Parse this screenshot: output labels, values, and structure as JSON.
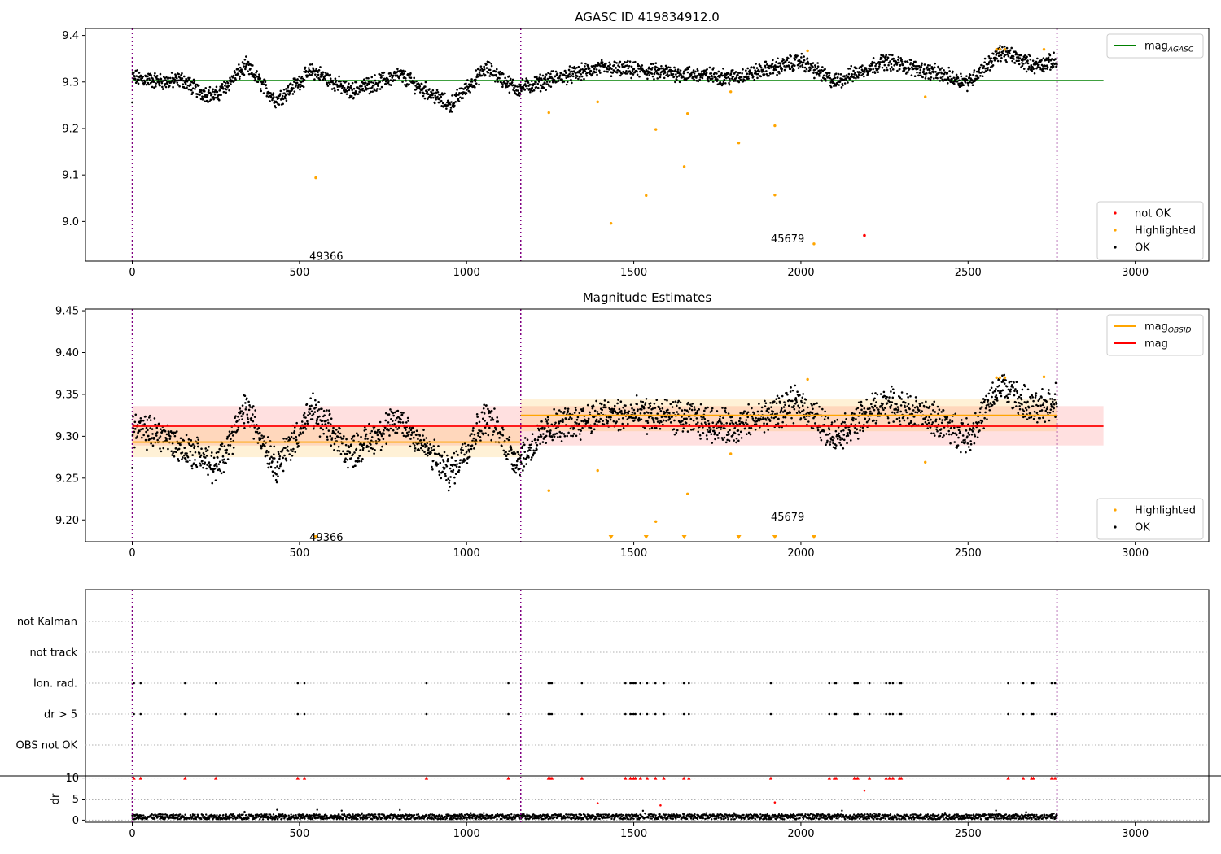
{
  "chart_data": [
    {
      "type": "scatter",
      "title": "AGASC ID 419834912.0",
      "xlim": [
        -140,
        3220
      ],
      "ylim": [
        8.915,
        9.415
      ],
      "xticks": [
        "0",
        "500",
        "1000",
        "1500",
        "2000",
        "2500",
        "3000"
      ],
      "yticks": [
        "9.0",
        "9.1",
        "9.2",
        "9.3",
        "9.4"
      ],
      "obsid_boundaries": [
        0,
        1162,
        2766
      ],
      "legend_top": [
        {
          "label": "mag",
          "subscript": "AGASC",
          "color": "#008000",
          "kind": "line"
        }
      ],
      "legend_bottom": [
        {
          "label": "not OK",
          "color": "#ff0000",
          "kind": "dot"
        },
        {
          "label": "Highlighted",
          "color": "#ffa500",
          "kind": "dot"
        },
        {
          "label": "OK",
          "color": "#000000",
          "kind": "dot"
        }
      ],
      "hlines": [
        {
          "name": "mag AGASC",
          "y": 9.303,
          "x0": 0,
          "x1": 2905,
          "color": "#008000"
        }
      ],
      "annotations": [
        {
          "text": "49366",
          "x": 530,
          "y": 8.925
        },
        {
          "text": "45679",
          "x": 1910,
          "y": 8.962
        }
      ],
      "series": [
        {
          "name": "OK",
          "color": "#000000",
          "points": [
            [
              0,
              9.255
            ],
            [
              0,
              9.31
            ],
            [
              100,
              9.3
            ],
            [
              150,
              9.305
            ],
            [
              200,
              9.28
            ],
            [
              250,
              9.27
            ],
            [
              340,
              9.335
            ],
            [
              430,
              9.26
            ],
            [
              540,
              9.325
            ],
            [
              650,
              9.28
            ],
            [
              800,
              9.315
            ],
            [
              950,
              9.25
            ],
            [
              1060,
              9.33
            ],
            [
              1150,
              9.285
            ],
            [
              1250,
              9.305
            ],
            [
              1400,
              9.33
            ],
            [
              1600,
              9.32
            ],
            [
              1800,
              9.31
            ],
            [
              2000,
              9.345
            ],
            [
              2100,
              9.3
            ],
            [
              2250,
              9.345
            ],
            [
              2400,
              9.32
            ],
            [
              2500,
              9.3
            ],
            [
              2600,
              9.365
            ],
            [
              2700,
              9.335
            ],
            [
              2766,
              9.345
            ]
          ]
        },
        {
          "name": "Highlighted",
          "color": "#ffa500",
          "points": [
            [
              549,
              9.094
            ],
            [
              1246,
              9.234
            ],
            [
              1392,
              9.257
            ],
            [
              1432,
              8.996
            ],
            [
              1537,
              9.056
            ],
            [
              1566,
              9.198
            ],
            [
              1651,
              9.118
            ],
            [
              1661,
              9.232
            ],
            [
              1790,
              9.279
            ],
            [
              1814,
              9.169
            ],
            [
              1922,
              9.057
            ],
            [
              1922,
              9.206
            ],
            [
              2020,
              9.367
            ],
            [
              2039,
              8.952
            ],
            [
              2372,
              9.268
            ],
            [
              2585,
              9.37
            ],
            [
              2595,
              9.37
            ],
            [
              2610,
              9.37
            ],
            [
              2727,
              9.37
            ]
          ]
        },
        {
          "name": "not OK",
          "color": "#ff0000",
          "points": [
            [
              2190,
              8.97
            ]
          ]
        }
      ]
    },
    {
      "type": "scatter",
      "title": "Magnitude Estimates",
      "xlim": [
        -140,
        3220
      ],
      "ylim": [
        9.174,
        9.452
      ],
      "xticks": [
        "0",
        "500",
        "1000",
        "1500",
        "2000",
        "2500",
        "3000"
      ],
      "yticks": [
        "9.20",
        "9.25",
        "9.30",
        "9.35",
        "9.40",
        "9.45"
      ],
      "obsid_boundaries": [
        0,
        1162,
        2766
      ],
      "legend_top": [
        {
          "label": "mag",
          "subscript": "OBSID",
          "color": "#ffa500",
          "kind": "line"
        },
        {
          "label": "mag",
          "subscript": "",
          "color": "#ff0000",
          "kind": "line"
        }
      ],
      "legend_bottom": [
        {
          "label": "Highlighted",
          "color": "#ffa500",
          "kind": "dot"
        },
        {
          "label": "OK",
          "color": "#000000",
          "kind": "dot"
        }
      ],
      "hlines": [
        {
          "name": "mag",
          "y": 9.312,
          "x0": 0,
          "x1": 2905,
          "color": "#ff0000",
          "band": [
            9.289,
            9.336
          ]
        },
        {
          "name": "mag OBSID 1",
          "y": 9.293,
          "x0": 0,
          "x1": 1162,
          "color": "#ffa500",
          "band": [
            9.275,
            9.311
          ]
        },
        {
          "name": "mag OBSID 2",
          "y": 9.325,
          "x0": 1162,
          "x1": 2766,
          "color": "#ffa500",
          "band": [
            9.306,
            9.344
          ]
        }
      ],
      "annotations": [
        {
          "text": "49366",
          "x": 530,
          "y": 9.179
        },
        {
          "text": "45679",
          "x": 1910,
          "y": 9.203
        }
      ],
      "series": [
        {
          "name": "OK",
          "color": "#000000",
          "points": [
            [
              0,
              9.253
            ],
            [
              0,
              9.31
            ],
            [
              100,
              9.3
            ],
            [
              150,
              9.285
            ],
            [
              200,
              9.28
            ],
            [
              250,
              9.26
            ],
            [
              340,
              9.335
            ],
            [
              430,
              9.265
            ],
            [
              540,
              9.33
            ],
            [
              650,
              9.28
            ],
            [
              800,
              9.32
            ],
            [
              950,
              9.255
            ],
            [
              1060,
              9.325
            ],
            [
              1150,
              9.27
            ],
            [
              1250,
              9.31
            ],
            [
              1400,
              9.325
            ],
            [
              1600,
              9.325
            ],
            [
              1800,
              9.31
            ],
            [
              2000,
              9.34
            ],
            [
              2100,
              9.3
            ],
            [
              2250,
              9.34
            ],
            [
              2400,
              9.32
            ],
            [
              2500,
              9.3
            ],
            [
              2600,
              9.36
            ],
            [
              2700,
              9.33
            ],
            [
              2766,
              9.345
            ]
          ]
        },
        {
          "name": "Highlighted",
          "color": "#ffa500",
          "points": [
            [
              1246,
              9.235
            ],
            [
              1392,
              9.259
            ],
            [
              1566,
              9.198
            ],
            [
              1661,
              9.231
            ],
            [
              1790,
              9.279
            ],
            [
              2020,
              9.368
            ],
            [
              2372,
              9.269
            ],
            [
              2585,
              9.37
            ],
            [
              2595,
              9.37
            ],
            [
              2610,
              9.37
            ],
            [
              2727,
              9.371
            ]
          ]
        },
        {
          "name": "Highlighted below range",
          "color": "#ffa500",
          "points": [
            [
              549,
              9.177
            ],
            [
              1432,
              9.177
            ],
            [
              1537,
              9.177
            ],
            [
              1651,
              9.177
            ],
            [
              1814,
              9.177
            ],
            [
              1922,
              9.177
            ],
            [
              2039,
              9.177
            ]
          ]
        }
      ]
    },
    {
      "type": "scatter",
      "xlim": [
        -140,
        3220
      ],
      "flag_rows": [
        "not Kalman",
        "not track",
        "Ion. rad.",
        "dr > 5",
        "OBS not OK"
      ],
      "obsid_boundaries": [
        0,
        1162,
        2766
      ],
      "flag_x": [
        5,
        25,
        158,
        250,
        495,
        515,
        880,
        1125,
        1245,
        1250,
        1255,
        1345,
        1475,
        1490,
        1495,
        1500,
        1505,
        1520,
        1540,
        1565,
        1590,
        1650,
        1665,
        1910,
        2085,
        2100,
        2105,
        2160,
        2165,
        2170,
        2205,
        2255,
        2265,
        2275,
        2295,
        2300,
        2620,
        2665,
        2690,
        2695,
        2750,
        2760
      ],
      "dr_panel": {
        "ylabel": "dr",
        "yticks": [
          "0",
          "5",
          "10"
        ],
        "ylim": [
          -0.5,
          10.5
        ],
        "outliers": [
          [
            1392,
            4
          ],
          [
            1580,
            3.5
          ],
          [
            1922,
            4.2
          ],
          [
            2190,
            7
          ]
        ],
        "capped_value": 10
      }
    }
  ]
}
